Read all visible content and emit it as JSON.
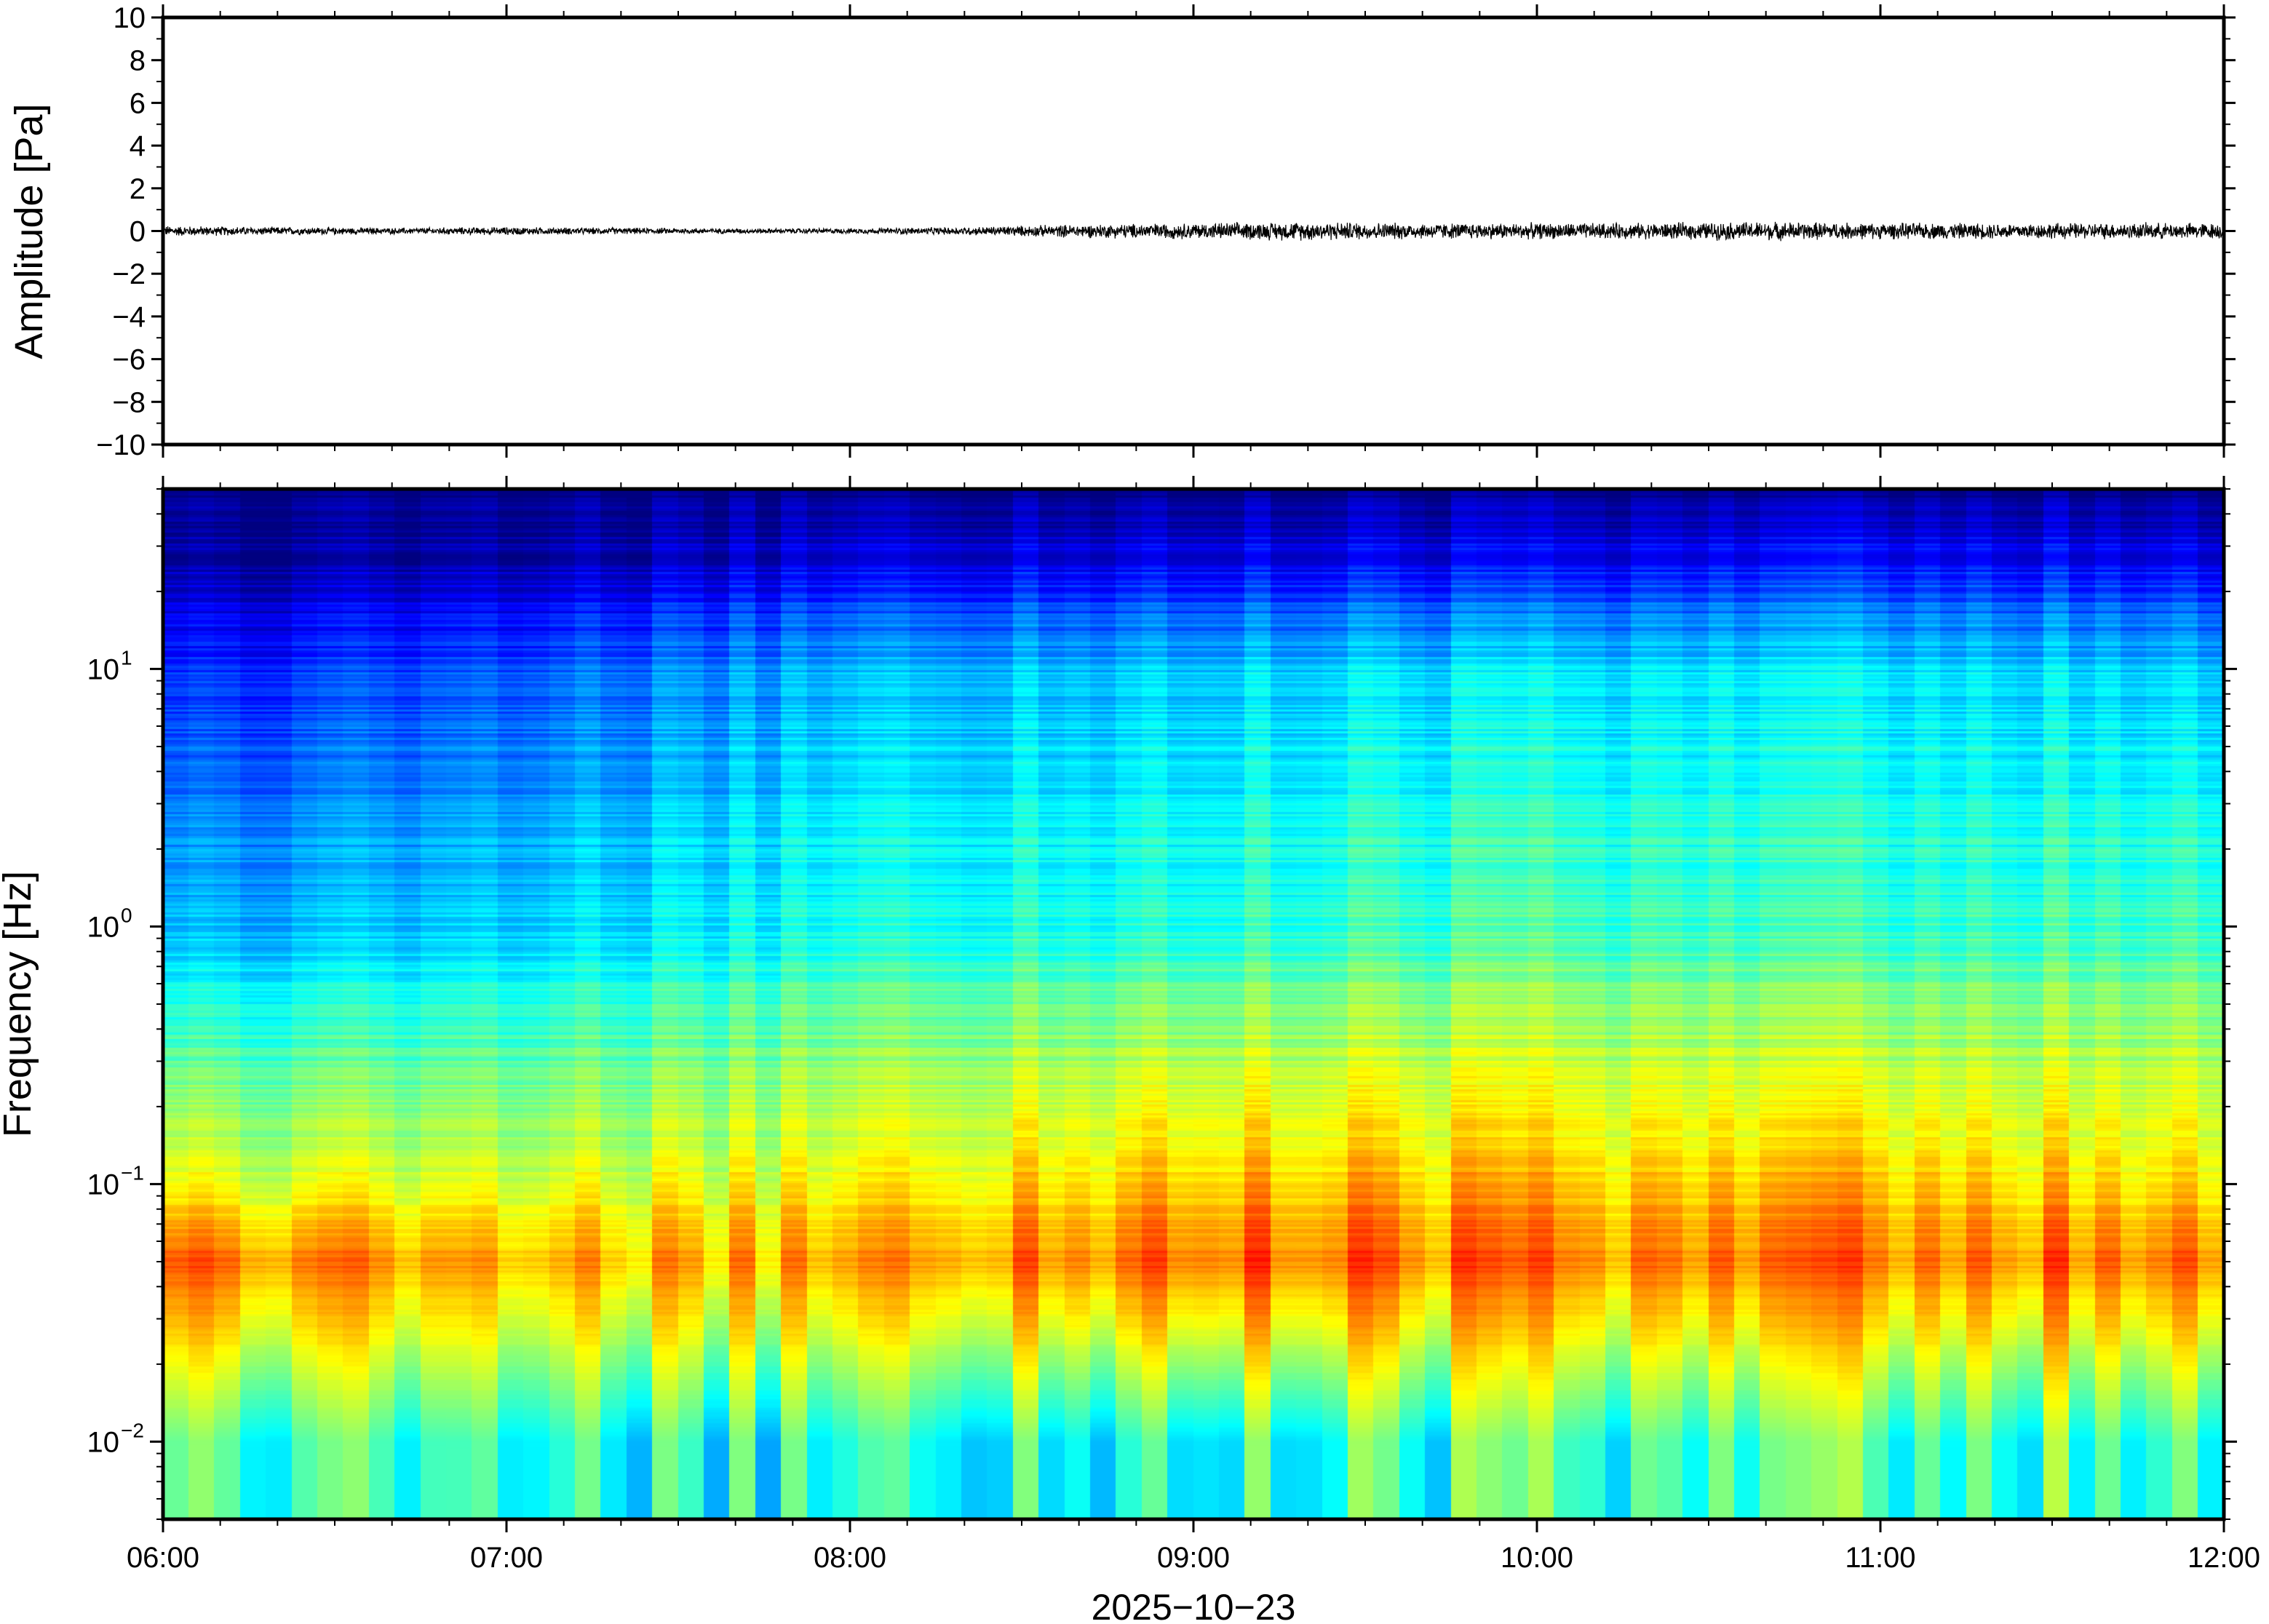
{
  "chart_data": [
    {
      "type": "line",
      "ylabel": "Amplitude [Pa]",
      "ylim": [
        -10,
        10
      ],
      "yticks": [
        "10",
        "8",
        "6",
        "4",
        "2",
        "0",
        "−2",
        "−4",
        "−6",
        "−8",
        "−10"
      ],
      "ytick_values": [
        10,
        8,
        6,
        4,
        2,
        0,
        -2,
        -4,
        -6,
        -8,
        -10
      ],
      "xlim": [
        "06:00",
        "12:00"
      ],
      "grid": false,
      "line_color": "#000000",
      "series": [
        {
          "x": [
            "06:00",
            "06:20",
            "06:40",
            "07:00",
            "07:20",
            "07:40",
            "08:00",
            "08:20",
            "08:40",
            "09:00",
            "09:20",
            "09:40",
            "10:00",
            "10:20",
            "10:40",
            "11:00",
            "11:20",
            "11:40",
            "12:00"
          ],
          "amplitude_envelope": [
            0.2,
            0.15,
            0.12,
            0.15,
            0.12,
            0.1,
            0.1,
            0.15,
            0.25,
            0.3,
            0.35,
            0.3,
            0.3,
            0.3,
            0.35,
            0.3,
            0.3,
            0.3,
            0.3
          ]
        }
      ]
    },
    {
      "type": "heatmap",
      "ylabel": "Frequency [Hz]",
      "yscale": "log",
      "ylim": [
        0.005,
        50
      ],
      "yticks": [
        {
          "base": "10",
          "exp": "1",
          "value": 10
        },
        {
          "base": "10",
          "exp": "0",
          "value": 1
        },
        {
          "base": "10",
          "exp": "−1",
          "value": 0.1
        },
        {
          "base": "10",
          "exp": "−2",
          "value": 0.01
        }
      ],
      "xlabel": "2025−10−23",
      "xticks": [
        "06:00",
        "07:00",
        "08:00",
        "09:00",
        "10:00",
        "11:00",
        "12:00"
      ],
      "xlim": [
        "06:00",
        "12:00"
      ],
      "colormap": "jet",
      "grid": false,
      "dominant_band_hz": [
        0.03,
        0.1
      ],
      "x": [
        "06:00",
        "07:00",
        "08:00",
        "09:00",
        "10:00",
        "11:00",
        "12:00"
      ],
      "power_relative": {
        "f_30Hz": [
          0.02,
          0.03,
          0.08,
          0.1,
          0.1,
          0.12,
          0.1
        ],
        "f_10Hz": [
          0.15,
          0.2,
          0.3,
          0.33,
          0.35,
          0.35,
          0.33
        ],
        "f_1Hz": [
          0.3,
          0.33,
          0.4,
          0.42,
          0.45,
          0.43,
          0.45
        ],
        "f_0.1Hz": [
          0.6,
          0.58,
          0.62,
          0.7,
          0.68,
          0.68,
          0.66
        ],
        "f_0.05Hz": [
          0.78,
          0.7,
          0.72,
          0.8,
          0.76,
          0.76,
          0.78
        ],
        "f_0.01Hz": [
          0.45,
          0.4,
          0.4,
          0.42,
          0.44,
          0.44,
          0.45
        ]
      }
    }
  ]
}
